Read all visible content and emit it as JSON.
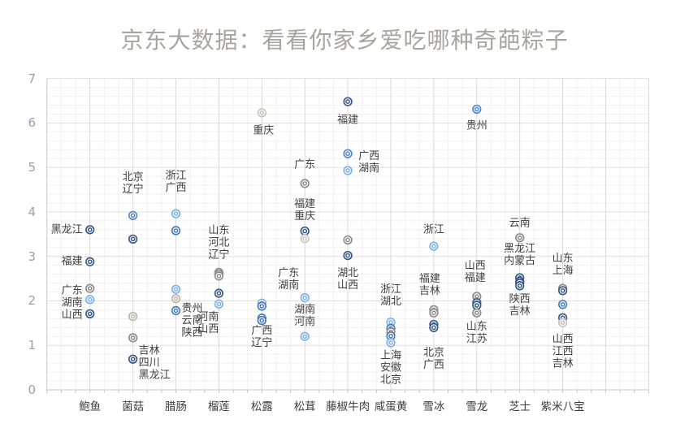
{
  "title": "京东大数据：看看你家乡爱吃哪种奇葩粽子",
  "chart_data": {
    "type": "scatter",
    "title": "京东大数据：看看你家乡爱吃哪种奇葩粽子",
    "ylim": [
      0,
      7
    ],
    "y_ticks": [
      0,
      1,
      2,
      3,
      4,
      5,
      6,
      7
    ],
    "grid": "major and minor, light gray",
    "legend": "none",
    "marker": "double ring circle",
    "palette": {
      "navy": "#395a84",
      "steel": "#4c7cb8",
      "blue": "#5289d4",
      "lightblue": "#7fb0e8",
      "gray": "#8e8d8b",
      "tan": "#bcb6a9",
      "lightgray": "#c9c5bd"
    },
    "categories": [
      "鲍鱼",
      "菌菇",
      "腊肠",
      "榴莲",
      "松露",
      "松茸",
      "藤椒牛肉",
      "咸蛋黄",
      "雪冰",
      "雪龙",
      "芝士",
      "紫米八宝"
    ],
    "groups": [
      {
        "category": "鲍鱼",
        "points": [
          {
            "label": "黑龙江",
            "value": 3.6,
            "color": "navy"
          },
          {
            "label": "福建",
            "value": 2.88,
            "color": "navy"
          },
          {
            "label": "广东",
            "value": 2.28,
            "color": "gray"
          },
          {
            "label": "湖南",
            "value": 2.03,
            "color": "lightblue"
          },
          {
            "label": "山西",
            "value": 1.71,
            "color": "navy"
          }
        ]
      },
      {
        "category": "菌菇",
        "points": [
          {
            "label": "北京",
            "value": 3.92,
            "color": "blue"
          },
          {
            "label": "辽宁",
            "value": 3.39,
            "color": "navy"
          },
          {
            "label": "吉林",
            "value": 1.65,
            "color": "tan"
          },
          {
            "label": "四川",
            "value": 1.17,
            "color": "gray"
          },
          {
            "label": "黑龙江",
            "value": 0.69,
            "color": "navy"
          }
        ]
      },
      {
        "category": "腊肠",
        "points": [
          {
            "label": "浙江",
            "value": 3.96,
            "color": "lightblue"
          },
          {
            "label": "广西",
            "value": 3.58,
            "color": "steel"
          },
          {
            "label": "贵州",
            "value": 2.26,
            "color": "lightblue"
          },
          {
            "label": "云南",
            "value": 2.05,
            "color": "tan"
          },
          {
            "label": "陕西",
            "value": 1.78,
            "color": "steel"
          }
        ]
      },
      {
        "category": "榴莲",
        "points": [
          {
            "label": "山东",
            "value": 2.64,
            "color": "gray"
          },
          {
            "label": "河北",
            "value": 2.6,
            "color": "gray"
          },
          {
            "label": "辽宁",
            "value": 2.56,
            "color": "gray"
          },
          {
            "label": "河南",
            "value": 2.17,
            "color": "navy"
          },
          {
            "label": "山西",
            "value": 1.93,
            "color": "lightblue"
          }
        ]
      },
      {
        "category": "松露",
        "points": [
          {
            "label": "重庆",
            "value": 6.23,
            "color": "lightgray"
          },
          {
            "label": "广东",
            "value": 1.95,
            "color": "lightblue"
          },
          {
            "label": "湖南",
            "value": 1.88,
            "color": "steel"
          },
          {
            "label": "广西",
            "value": 1.61,
            "color": "steel"
          },
          {
            "label": "辽宁",
            "value": 1.56,
            "color": "steel"
          }
        ]
      },
      {
        "category": "松茸",
        "points": [
          {
            "label": "广东",
            "value": 4.64,
            "color": "gray"
          },
          {
            "label": "福建",
            "value": 3.57,
            "color": "navy"
          },
          {
            "label": "重庆",
            "value": 3.4,
            "color": "lightgray"
          },
          {
            "label": "湖南",
            "value": 2.07,
            "color": "lightblue"
          },
          {
            "label": "河南",
            "value": 1.2,
            "color": "lightblue"
          }
        ]
      },
      {
        "category": "藤椒牛肉",
        "points": [
          {
            "label": "福建",
            "value": 6.48,
            "color": "navy"
          },
          {
            "label": "广西",
            "value": 5.31,
            "color": "blue"
          },
          {
            "label": "湖南",
            "value": 4.93,
            "color": "lightblue"
          },
          {
            "label": "湖北",
            "value": 3.37,
            "color": "gray"
          },
          {
            "label": "山西",
            "value": 3.02,
            "color": "navy"
          }
        ]
      },
      {
        "category": "咸蛋黄",
        "points": [
          {
            "label": "浙江",
            "value": 1.52,
            "color": "lightblue"
          },
          {
            "label": "湖北",
            "value": 1.38,
            "color": "steel"
          },
          {
            "label": "上海",
            "value": 1.3,
            "color": "gray"
          },
          {
            "label": "安徽",
            "value": 1.21,
            "color": "steel"
          },
          {
            "label": "北京",
            "value": 1.06,
            "color": "lightblue"
          }
        ]
      },
      {
        "category": "雪冰",
        "points": [
          {
            "label": "浙江",
            "value": 3.23,
            "color": "lightblue"
          },
          {
            "label": "福建",
            "value": 1.8,
            "color": "gray"
          },
          {
            "label": "吉林",
            "value": 1.73,
            "color": "gray"
          },
          {
            "label": "北京",
            "value": 1.47,
            "color": "navy"
          },
          {
            "label": "广西",
            "value": 1.4,
            "color": "navy"
          }
        ]
      },
      {
        "category": "雪龙",
        "points": [
          {
            "label": "贵州",
            "value": 6.31,
            "color": "blue"
          },
          {
            "label": "山西",
            "value": 2.1,
            "color": "gray"
          },
          {
            "label": "福建",
            "value": 1.96,
            "color": "navy"
          },
          {
            "label": "山东",
            "value": 1.9,
            "color": "navy"
          },
          {
            "label": "江苏",
            "value": 1.73,
            "color": "gray"
          }
        ]
      },
      {
        "category": "芝士",
        "points": [
          {
            "label": "云南",
            "value": 3.42,
            "color": "gray"
          },
          {
            "label": "黑龙江",
            "value": 2.52,
            "color": "navy"
          },
          {
            "label": "内蒙古",
            "value": 2.44,
            "color": "navy"
          },
          {
            "label": "陕西",
            "value": 2.4,
            "color": "navy"
          },
          {
            "label": "吉林",
            "value": 2.34,
            "color": "navy"
          }
        ]
      },
      {
        "category": "紫米八宝",
        "points": [
          {
            "label": "山东",
            "value": 2.28,
            "color": "gray"
          },
          {
            "label": "上海",
            "value": 2.23,
            "color": "navy"
          },
          {
            "label": "山西",
            "value": 1.92,
            "color": "steel"
          },
          {
            "label": "江西",
            "value": 1.62,
            "color": "navy"
          },
          {
            "label": "吉林",
            "value": 1.51,
            "color": "lightgray"
          }
        ]
      }
    ],
    "annotations": [
      {
        "cat": 1,
        "dx": -9,
        "y": 3.6,
        "align": "right",
        "lines": [
          "黑龙江"
        ]
      },
      {
        "cat": 1,
        "dx": -9,
        "y": 2.88,
        "align": "right",
        "lines": [
          "福建"
        ]
      },
      {
        "cat": 1,
        "dx": -9,
        "y": 1.95,
        "align": "right",
        "lines": [
          "广东",
          "湖南",
          "山西"
        ]
      },
      {
        "cat": 2,
        "dx": 0,
        "y": 4.64,
        "align": "center",
        "lines": [
          "北京",
          "辽宁"
        ]
      },
      {
        "cat": 2,
        "dx": 7,
        "y": 0.61,
        "align": "left",
        "lines": [
          "吉林",
          "四川",
          "黑龙江"
        ]
      },
      {
        "cat": 3,
        "dx": 0,
        "y": 4.67,
        "align": "center",
        "lines": [
          "浙江",
          "广西"
        ]
      },
      {
        "cat": 3,
        "dx": 7,
        "y": 1.55,
        "align": "left",
        "lines": [
          "贵州",
          "云南",
          "陕西"
        ]
      },
      {
        "cat": 4,
        "dx": 0,
        "y": 3.3,
        "align": "center",
        "lines": [
          "山东",
          "河北",
          "辽宁"
        ]
      },
      {
        "cat": 4,
        "dx": -13,
        "y": 1.49,
        "align": "center",
        "lines": [
          "河南",
          "山西"
        ]
      },
      {
        "cat": 5,
        "dx": 2,
        "y": 5.83,
        "align": "center",
        "lines": [
          "重庆"
        ]
      },
      {
        "cat": 5,
        "dx": 20,
        "y": 2.48,
        "align": "left",
        "lines": [
          "广东",
          "湖南"
        ]
      },
      {
        "cat": 5,
        "dx": 0,
        "y": 1.18,
        "align": "center",
        "lines": [
          "广西",
          "辽宁"
        ]
      },
      {
        "cat": 6,
        "dx": 0,
        "y": 5.05,
        "align": "center",
        "lines": [
          "广东"
        ]
      },
      {
        "cat": 6,
        "dx": 0,
        "y": 4.03,
        "align": "center",
        "lines": [
          "福建",
          "重庆"
        ]
      },
      {
        "cat": 6,
        "dx": 0,
        "y": 1.66,
        "align": "center",
        "lines": [
          "湖南",
          "河南"
        ]
      },
      {
        "cat": 7,
        "dx": 0,
        "y": 6.07,
        "align": "center",
        "lines": [
          "福建"
        ]
      },
      {
        "cat": 7,
        "dx": 13,
        "y": 5.12,
        "align": "left",
        "lines": [
          "广西",
          "湖南"
        ]
      },
      {
        "cat": 7,
        "dx": 0,
        "y": 2.48,
        "align": "center",
        "lines": [
          "湖北",
          "山西"
        ]
      },
      {
        "cat": 8,
        "dx": 0,
        "y": 2.11,
        "align": "center",
        "lines": [
          "浙江",
          "湖北"
        ]
      },
      {
        "cat": 8,
        "dx": 0,
        "y": 0.49,
        "align": "center",
        "lines": [
          "上海",
          "安徽",
          "北京"
        ]
      },
      {
        "cat": 9,
        "dx": 0,
        "y": 3.59,
        "align": "center",
        "lines": [
          "浙江"
        ]
      },
      {
        "cat": 9,
        "dx": -5,
        "y": 2.36,
        "align": "center",
        "lines": [
          "福建",
          "吉林"
        ]
      },
      {
        "cat": 9,
        "dx": 0,
        "y": 0.69,
        "align": "center",
        "lines": [
          "北京",
          "广西"
        ]
      },
      {
        "cat": 10,
        "dx": 0,
        "y": 5.94,
        "align": "center",
        "lines": [
          "贵州"
        ]
      },
      {
        "cat": 10,
        "dx": -2,
        "y": 2.64,
        "align": "center",
        "lines": [
          "山西",
          "福建"
        ]
      },
      {
        "cat": 10,
        "dx": 0,
        "y": 1.27,
        "align": "center",
        "lines": [
          "山东",
          "江苏"
        ]
      },
      {
        "cat": 11,
        "dx": 0,
        "y": 3.74,
        "align": "center",
        "lines": [
          "云南"
        ]
      },
      {
        "cat": 11,
        "dx": 0,
        "y": 3.03,
        "align": "center",
        "lines": [
          "黑龙江",
          "内蒙古"
        ]
      },
      {
        "cat": 11,
        "dx": 0,
        "y": 1.9,
        "align": "center",
        "lines": [
          "陕西",
          "吉林"
        ]
      },
      {
        "cat": 12,
        "dx": 0,
        "y": 2.81,
        "align": "center",
        "lines": [
          "山东",
          "上海"
        ]
      },
      {
        "cat": 12,
        "dx": 0,
        "y": 0.85,
        "align": "center",
        "lines": [
          "山西",
          "江西",
          "吉林"
        ]
      }
    ]
  },
  "colors": {
    "title_text": "#a9a49c",
    "y_axis_text": "#98a1ae",
    "x_axis_text": "#3f3f3f",
    "annotation_text": "#3f3f3f",
    "minor_grid": "#f3f2f0",
    "major_grid": "#e2e0dd",
    "vertical_major_grid": "#dbd9d6",
    "axis_line": "#c8c6c3",
    "background": "#ffffff"
  }
}
